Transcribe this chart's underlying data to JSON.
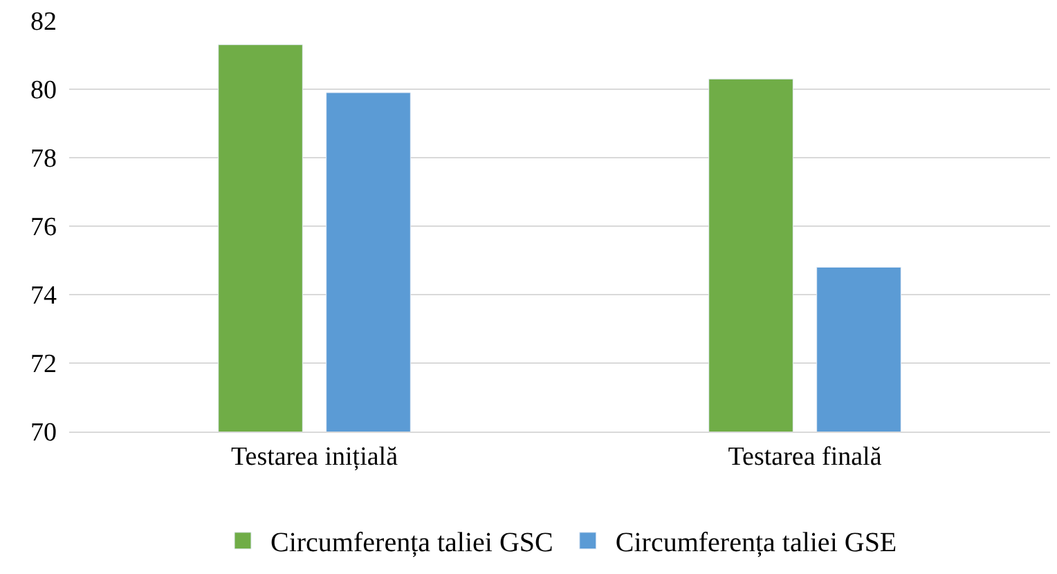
{
  "chart_data": {
    "type": "bar",
    "categories": [
      "Testarea inițială",
      "Testarea finală"
    ],
    "series": [
      {
        "name": "Circumferența taliei GSC",
        "color": "#70ad47",
        "values": [
          81.3,
          80.3
        ]
      },
      {
        "name": "Circumferența taliei GSE",
        "color": "#5b9bd5",
        "values": [
          79.9,
          74.8
        ]
      }
    ],
    "ylim": [
      70,
      82
    ],
    "yticks": [
      70,
      72,
      74,
      76,
      78,
      80,
      82
    ],
    "grid": "y",
    "legend": "bottom"
  }
}
